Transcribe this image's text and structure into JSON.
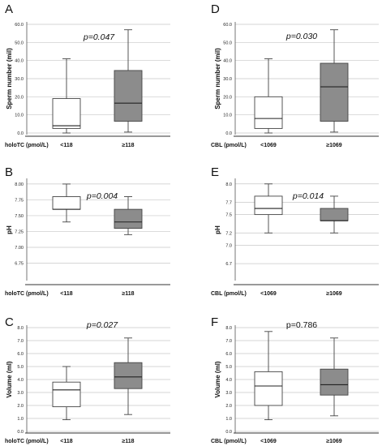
{
  "chart_data": [
    {
      "panel": "A",
      "type": "box",
      "ylabel": "Sperm number (mil)",
      "yticks": [
        "0.0",
        "10.0",
        "20.0",
        "30.0",
        "40.0",
        "50.0",
        "60.0"
      ],
      "ylim": [
        0,
        60
      ],
      "pvalue": "p=0.047",
      "pvalue_italic": true,
      "group_label": "holoTC (pmol/L)",
      "categories": [
        "<118",
        "≥118"
      ],
      "boxes": [
        {
          "min": 0.0,
          "q1": 2.5,
          "median": 4.0,
          "q3": 19.0,
          "max": 41.0,
          "fill": "#ffffff"
        },
        {
          "min": 0.5,
          "q1": 6.5,
          "median": 16.5,
          "q3": 34.5,
          "max": 57.0,
          "fill": "#8c8c8c"
        }
      ]
    },
    {
      "panel": "D",
      "type": "box",
      "ylabel": "Sperm number (mil)",
      "yticks": [
        "0.0",
        "10.0",
        "20.0",
        "30.0",
        "40.0",
        "50.0",
        "60.0"
      ],
      "ylim": [
        0,
        60
      ],
      "pvalue": "p=0.030",
      "pvalue_italic": true,
      "group_label": "CBL (pmol/L)",
      "categories": [
        "<1069",
        "≥1069"
      ],
      "boxes": [
        {
          "min": 0.0,
          "q1": 2.5,
          "median": 8.0,
          "q3": 20.0,
          "max": 41.0,
          "fill": "#ffffff"
        },
        {
          "min": 0.5,
          "q1": 6.5,
          "median": 25.5,
          "q3": 38.5,
          "max": 57.0,
          "fill": "#8c8c8c"
        }
      ]
    },
    {
      "panel": "B",
      "type": "box",
      "ylabel": "pH",
      "yticks": [
        "6.75",
        "7.00",
        "7.25",
        "7.50",
        "7.75",
        "8.00"
      ],
      "ylim": [
        6.5,
        8.05
      ],
      "pvalue": "p=0.004",
      "pvalue_italic": true,
      "group_label": "holoTC (pmol/L)",
      "categories": [
        "<118",
        "≥118"
      ],
      "boxes": [
        {
          "min": 7.4,
          "q1": 7.6,
          "median": 7.6,
          "q3": 7.8,
          "max": 8.0,
          "fill": "#ffffff"
        },
        {
          "min": 7.2,
          "q1": 7.3,
          "median": 7.4,
          "q3": 7.6,
          "max": 7.8,
          "fill": "#8c8c8c"
        }
      ]
    },
    {
      "panel": "E",
      "type": "box",
      "ylabel": "pH",
      "yticks": [
        "6.7",
        "7.0",
        "7.2",
        "7.5",
        "7.7",
        "8.0"
      ],
      "ylim": [
        6.45,
        8.05
      ],
      "pvalue": "p=0.014",
      "pvalue_italic": true,
      "group_label": "CBL (pmol/L)",
      "categories": [
        "<1069",
        "≥1069"
      ],
      "boxes": [
        {
          "min": 7.2,
          "q1": 7.5,
          "median": 7.6,
          "q3": 7.8,
          "max": 8.0,
          "fill": "#ffffff"
        },
        {
          "min": 7.2,
          "q1": 7.4,
          "median": 7.4,
          "q3": 7.6,
          "max": 7.8,
          "fill": "#8c8c8c"
        }
      ]
    },
    {
      "panel": "C",
      "type": "box",
      "ylabel": "Volume (ml)",
      "yticks": [
        "0.0",
        "1.0",
        "2.0",
        "3.0",
        "4.0",
        "5.0",
        "6.0",
        "7.0",
        "8.0"
      ],
      "ylim": [
        0,
        8
      ],
      "pvalue": "p=0.027",
      "pvalue_italic": true,
      "group_label": "holoTC (pmol/L)",
      "categories": [
        "<118",
        "≥118"
      ],
      "boxes": [
        {
          "min": 0.9,
          "q1": 1.9,
          "median": 3.2,
          "q3": 3.8,
          "max": 5.0,
          "fill": "#ffffff"
        },
        {
          "min": 1.3,
          "q1": 3.3,
          "median": 4.2,
          "q3": 5.3,
          "max": 7.2,
          "fill": "#8c8c8c"
        }
      ]
    },
    {
      "panel": "F",
      "type": "box",
      "ylabel": "Volume (ml)",
      "yticks": [
        "0.0",
        "1.0",
        "2.0",
        "3.0",
        "4.0",
        "5.0",
        "6.0",
        "7.0",
        "8.0"
      ],
      "ylim": [
        0,
        8
      ],
      "pvalue": "p=0.786",
      "pvalue_italic": false,
      "group_label": "CBL (pmol/L)",
      "categories": [
        "<1069",
        "≥1069"
      ],
      "boxes": [
        {
          "min": 0.9,
          "q1": 2.0,
          "median": 3.5,
          "q3": 4.6,
          "max": 7.7,
          "fill": "#ffffff"
        },
        {
          "min": 1.2,
          "q1": 2.8,
          "median": 3.6,
          "q3": 4.8,
          "max": 7.2,
          "fill": "#8c8c8c"
        }
      ]
    }
  ]
}
